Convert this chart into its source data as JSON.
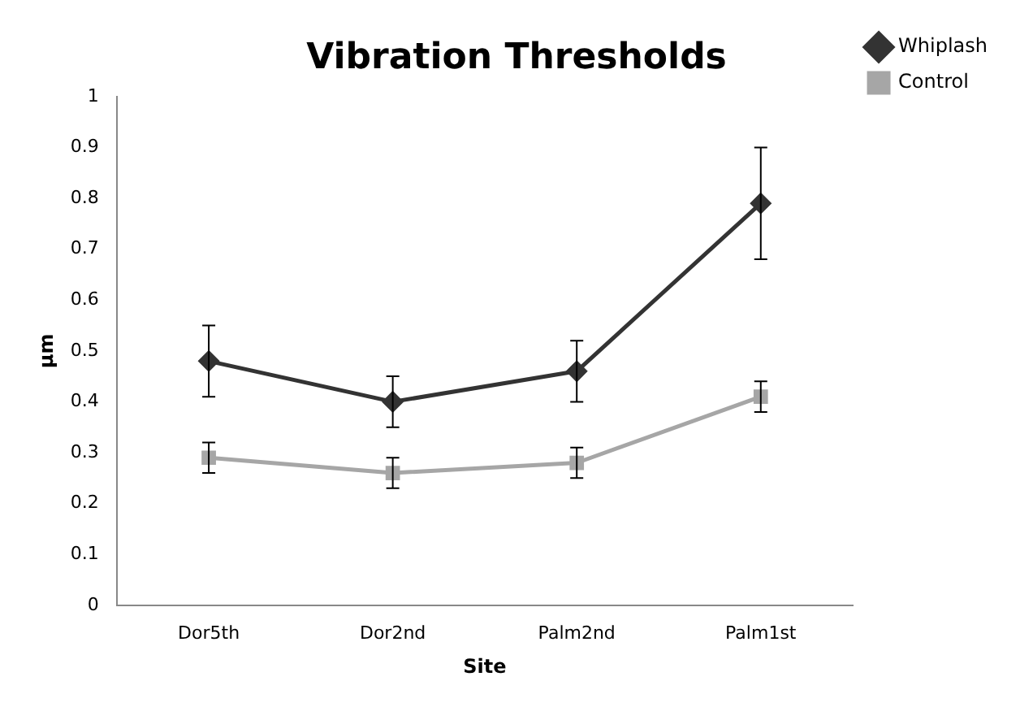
{
  "chart_data": {
    "type": "line",
    "title": "Vibration Thresholds",
    "xlabel": "Site",
    "ylabel": "μm",
    "categories": [
      "Dor5th",
      "Dor2nd",
      "Palm2nd",
      "Palm1st"
    ],
    "series": [
      {
        "name": "Whiplash",
        "color": "#333333",
        "marker": "diamond",
        "values": [
          0.48,
          0.4,
          0.46,
          0.79
        ],
        "errors": [
          0.07,
          0.05,
          0.06,
          0.11
        ]
      },
      {
        "name": "Control",
        "color": "#a6a6a6",
        "marker": "square",
        "values": [
          0.29,
          0.26,
          0.28,
          0.41
        ],
        "errors": [
          0.03,
          0.03,
          0.03,
          0.03
        ]
      }
    ],
    "ylim": [
      0,
      1
    ],
    "yticks": [
      0,
      0.1,
      0.2,
      0.3,
      0.4,
      0.5,
      0.6,
      0.7,
      0.8,
      0.9,
      1
    ],
    "grid": false,
    "legend": "top right",
    "line_style": "solid"
  }
}
